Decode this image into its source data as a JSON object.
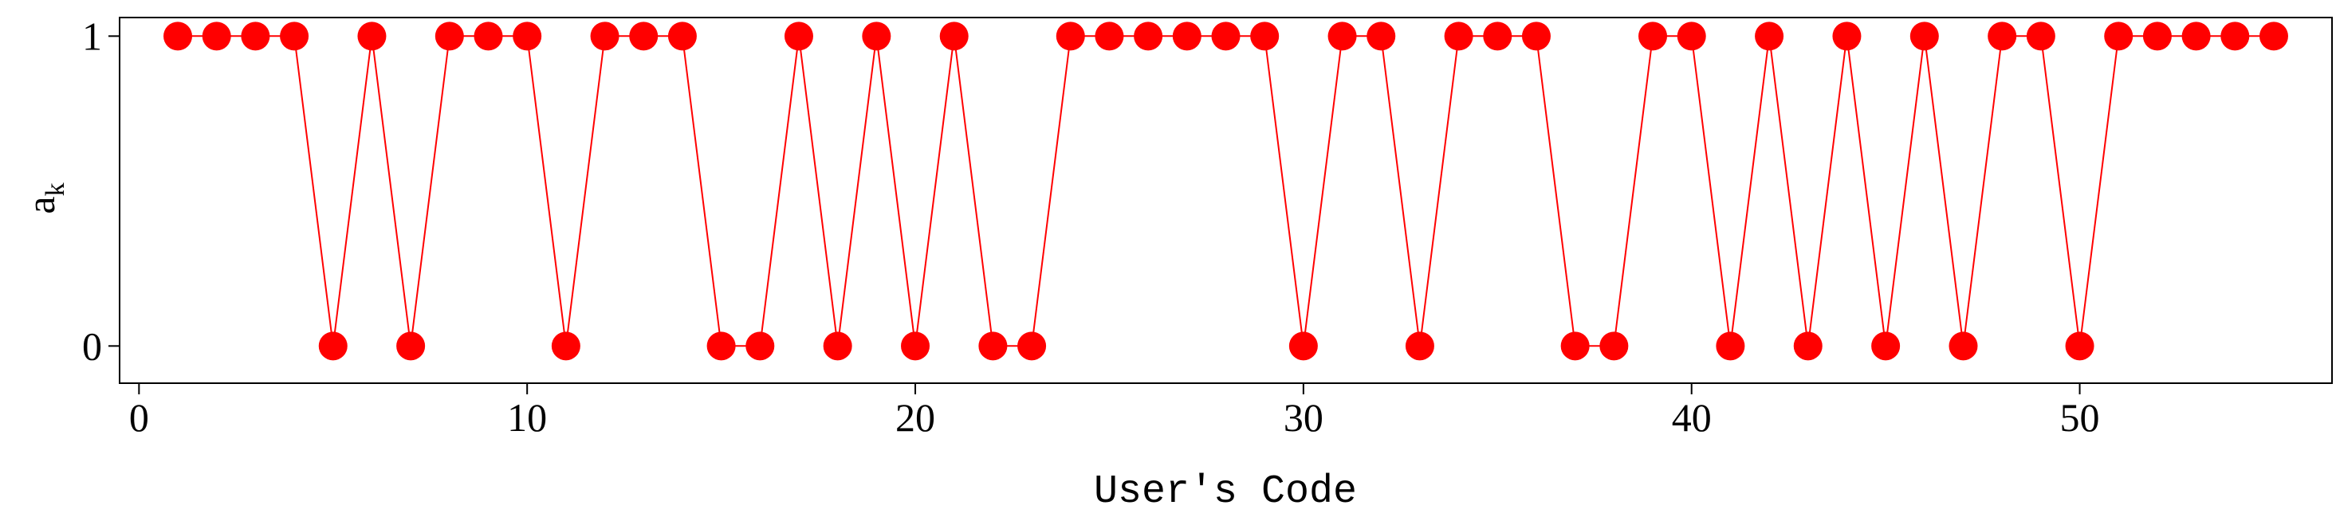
{
  "chart_data": {
    "type": "line",
    "xlabel": "User's Code",
    "ylabel_main": "a",
    "ylabel_sub": "k",
    "xlim": [
      -0.5,
      56.5
    ],
    "ylim": [
      -0.12,
      1.06
    ],
    "xticks": [
      0,
      10,
      20,
      30,
      40,
      50
    ],
    "yticks": [
      0,
      1
    ],
    "grid": false,
    "marker": "circle",
    "color": "#ff0000",
    "x": [
      1,
      2,
      3,
      4,
      5,
      6,
      7,
      8,
      9,
      10,
      11,
      12,
      13,
      14,
      15,
      16,
      17,
      18,
      19,
      20,
      21,
      22,
      23,
      24,
      25,
      26,
      27,
      28,
      29,
      30,
      31,
      32,
      33,
      34,
      35,
      36,
      37,
      38,
      39,
      40,
      41,
      42,
      43,
      44,
      45,
      46,
      47,
      48,
      49,
      50,
      51,
      52,
      53,
      54,
      55
    ],
    "values": [
      1,
      1,
      1,
      1,
      0,
      1,
      0,
      1,
      1,
      1,
      0,
      1,
      1,
      1,
      0,
      0,
      1,
      0,
      1,
      0,
      1,
      0,
      0,
      1,
      1,
      1,
      1,
      1,
      1,
      0,
      1,
      1,
      0,
      1,
      1,
      1,
      0,
      0,
      1,
      1,
      0,
      1,
      0,
      1,
      0,
      1,
      0,
      1,
      1,
      0,
      1,
      1,
      1,
      1,
      1
    ]
  }
}
